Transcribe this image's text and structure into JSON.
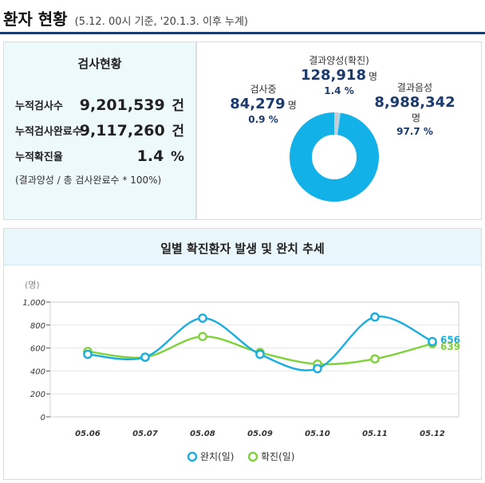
{
  "header": {
    "title": "환자 현황",
    "subtitle": "(5.12. 00시 기준, '20.1.3. 이후 누계)"
  },
  "test_status": {
    "title": "검사현황",
    "rows": [
      {
        "label": "누적검사수",
        "value": "9,201,539",
        "unit": "건"
      },
      {
        "label": "누적검사완료수",
        "value": "9,117,260",
        "unit": "건"
      },
      {
        "label": "누적확진율",
        "value": "1.4",
        "unit": "%"
      }
    ],
    "note": "(결과양성 / 총 검사완료수 * 100%)"
  },
  "result_status": {
    "positive": {
      "name": "결과양성(확진)",
      "value": "128,918",
      "unit": "명",
      "percent": "1.4 %"
    },
    "testing": {
      "name": "검사중",
      "value": "84,279",
      "unit": "명",
      "percent": "0.9 %"
    },
    "negative": {
      "name": "결과음성",
      "value": "8,988,342",
      "unit": "명",
      "percent": "97.7 %"
    }
  },
  "colors": {
    "navy": "#1b3b6f",
    "released": "#1aaee0",
    "confirmed": "#7ed23a",
    "donut_main": "#12b1e8",
    "donut_testing": "#a9d7ea",
    "donut_positive": "#c9c9c9"
  },
  "chart_data": [
    {
      "type": "pie",
      "style": "donut",
      "labels": [
        "결과양성(확진)",
        "검사중",
        "결과음성"
      ],
      "values": [
        1.4,
        0.9,
        97.7
      ]
    },
    {
      "type": "line",
      "title": "일별 확진환자 발생 및 완치 추세",
      "ylabel": "(명)",
      "ylim": [
        0,
        1000
      ],
      "yticks": [
        "0",
        "200",
        "400",
        "600",
        "800",
        "1,000"
      ],
      "categories": [
        "05.06",
        "05.07",
        "05.08",
        "05.09",
        "05.10",
        "05.11",
        "05.12"
      ],
      "series": [
        {
          "name": "완치(일)",
          "values": [
            545,
            520,
            860,
            545,
            420,
            870,
            656
          ]
        },
        {
          "name": "확진(일)",
          "values": [
            570,
            520,
            700,
            560,
            460,
            505,
            639
          ]
        }
      ],
      "end_labels": [
        "656",
        "639"
      ],
      "grid": true,
      "legend": "bottom-center"
    }
  ]
}
